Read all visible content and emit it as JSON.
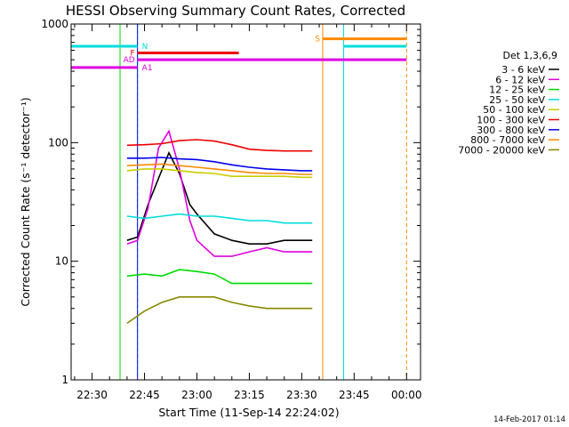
{
  "chart_data": {
    "type": "line",
    "title": "HESSI Observing Summary Count Rates, Corrected",
    "xlabel": "Start Time (11-Sep-14 22:24:02)",
    "ylabel": "Corrected Count Rate (s⁻¹ detector⁻¹)",
    "y_scale": "log",
    "ylim": [
      1,
      1000
    ],
    "xlim": [
      "22:24",
      "00:04"
    ],
    "x_ticks": [
      "22:30",
      "22:45",
      "23:00",
      "23:15",
      "23:30",
      "23:45",
      "00:00"
    ],
    "y_ticks": [
      "1",
      "10",
      "100",
      "1000"
    ],
    "legend_title": "Det 1,3,6,9",
    "legend_position": "right",
    "timestamp": "14-Feb-2017 01:14",
    "series": [
      {
        "name": "3 - 6 keV",
        "color": "#000000",
        "x": [
          "22:40",
          "22:43",
          "22:46",
          "22:49",
          "22:52",
          "22:55",
          "22:58",
          "23:00",
          "23:05",
          "23:10",
          "23:15",
          "23:20",
          "23:25",
          "23:30",
          "23:33"
        ],
        "y": [
          15,
          16,
          30,
          50,
          82,
          55,
          30,
          25,
          17,
          15,
          14,
          14,
          15,
          15,
          15
        ]
      },
      {
        "name": "6 - 12 keV",
        "color": "#e000e0",
        "x": [
          "22:40",
          "22:43",
          "22:46",
          "22:49",
          "22:52",
          "22:55",
          "22:58",
          "23:00",
          "23:05",
          "23:10",
          "23:15",
          "23:20",
          "23:25",
          "23:30",
          "23:33"
        ],
        "y": [
          14,
          15,
          28,
          90,
          125,
          60,
          22,
          15,
          11,
          11,
          12,
          13,
          12,
          12,
          12
        ]
      },
      {
        "name": "12 - 25 keV",
        "color": "#00dd00",
        "x": [
          "22:40",
          "22:45",
          "22:50",
          "22:55",
          "23:00",
          "23:05",
          "23:10",
          "23:15",
          "23:20",
          "23:25",
          "23:30",
          "23:33"
        ],
        "y": [
          7.5,
          7.8,
          7.5,
          8.5,
          8.2,
          7.8,
          6.5,
          6.5,
          6.5,
          6.5,
          6.5,
          6.5
        ]
      },
      {
        "name": "25 - 50 keV",
        "color": "#00dddd",
        "x": [
          "22:40",
          "22:45",
          "22:50",
          "22:55",
          "23:00",
          "23:05",
          "23:10",
          "23:15",
          "23:20",
          "23:25",
          "23:30",
          "23:33"
        ],
        "y": [
          24,
          23,
          24,
          25,
          24,
          24,
          23,
          22,
          22,
          21,
          21,
          21
        ]
      },
      {
        "name": "50 - 100 keV",
        "color": "#cccc00",
        "x": [
          "22:40",
          "22:45",
          "22:50",
          "22:55",
          "23:00",
          "23:05",
          "23:10",
          "23:15",
          "23:20",
          "23:25",
          "23:30",
          "23:33"
        ],
        "y": [
          58,
          60,
          60,
          58,
          56,
          55,
          52,
          52,
          52,
          52,
          51,
          51
        ]
      },
      {
        "name": "100 - 300 keV",
        "color": "#ee0000",
        "x": [
          "22:40",
          "22:45",
          "22:50",
          "22:55",
          "23:00",
          "23:05",
          "23:10",
          "23:15",
          "23:20",
          "23:25",
          "23:30",
          "23:33"
        ],
        "y": [
          95,
          96,
          98,
          104,
          106,
          103,
          96,
          88,
          86,
          85,
          85,
          85
        ]
      },
      {
        "name": "300 - 800 keV",
        "color": "#0000ee",
        "x": [
          "22:40",
          "22:45",
          "22:50",
          "22:55",
          "23:00",
          "23:05",
          "23:10",
          "23:15",
          "23:20",
          "23:25",
          "23:30",
          "23:33"
        ],
        "y": [
          74,
          74,
          75,
          73,
          72,
          69,
          65,
          62,
          60,
          59,
          58,
          58
        ]
      },
      {
        "name": "800 - 7000 keV",
        "color": "#ff8800",
        "x": [
          "22:40",
          "22:45",
          "22:50",
          "22:55",
          "23:00",
          "23:05",
          "23:10",
          "23:15",
          "23:20",
          "23:25",
          "23:30",
          "23:33"
        ],
        "y": [
          64,
          65,
          66,
          64,
          62,
          60,
          58,
          56,
          55,
          55,
          54,
          54
        ]
      },
      {
        "name": "7000 - 20000 keV",
        "color": "#888800",
        "x": [
          "22:40",
          "22:45",
          "22:50",
          "22:55",
          "23:00",
          "23:05",
          "23:10",
          "23:15",
          "23:20",
          "23:25",
          "23:30",
          "23:33"
        ],
        "y": [
          3,
          3.8,
          4.5,
          5,
          5,
          5,
          4.5,
          4.2,
          4,
          4,
          4,
          4
        ]
      }
    ],
    "flags": [
      {
        "label": "N",
        "color": "#00dddd",
        "y": 650,
        "x": [
          "22:24",
          "22:43"
        ]
      },
      {
        "label": "F",
        "color": "#ee0000",
        "y": 570,
        "x": [
          "22:43",
          "23:12"
        ]
      },
      {
        "label": "AD",
        "color": "#e000e0",
        "y": 500,
        "x": [
          "22:43",
          "00:00"
        ]
      },
      {
        "label": "A1",
        "color": "#e000e0",
        "y": 430,
        "x": [
          "22:24",
          "22:43"
        ]
      },
      {
        "label": "S",
        "color": "#ff8800",
        "y": 750,
        "x": [
          "23:36",
          "00:00"
        ]
      },
      {
        "label": "",
        "color": "#00dddd",
        "y": 650,
        "x": [
          "23:42",
          "00:00"
        ]
      }
    ],
    "vertical_markers": [
      {
        "x": "22:24",
        "color": "#00dddd",
        "style": "solid"
      },
      {
        "x": "22:43",
        "color": "#00dddd",
        "style": "dashed"
      },
      {
        "x": "22:38",
        "color": "#00dd00",
        "style": "solid"
      },
      {
        "x": "22:43",
        "color": "#0000ee",
        "style": "solid"
      },
      {
        "x": "23:36",
        "color": "#ff8800",
        "style": "solid"
      },
      {
        "x": "23:42",
        "color": "#00dddd",
        "style": "solid"
      },
      {
        "x": "00:00",
        "color": "#ff8800",
        "style": "dashed"
      }
    ]
  }
}
